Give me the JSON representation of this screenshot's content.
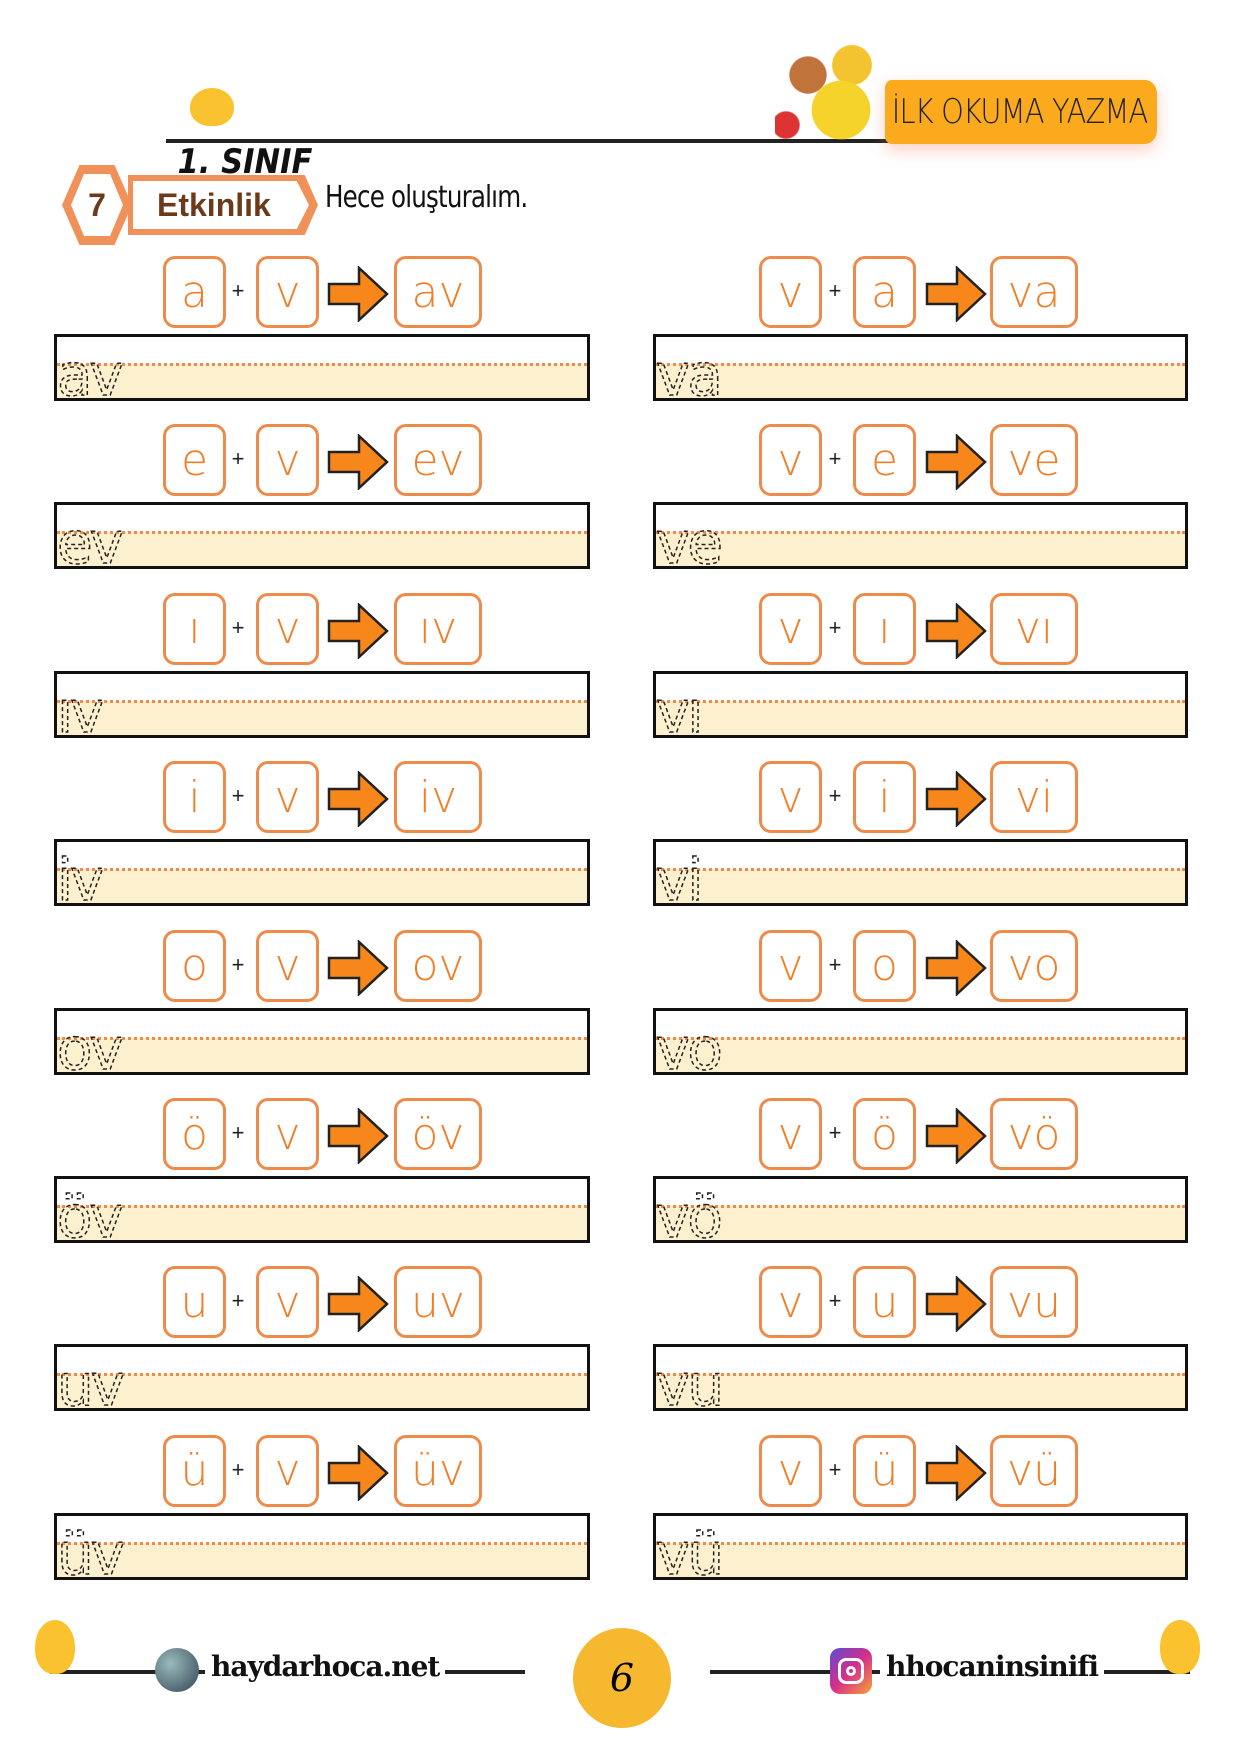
{
  "header": {
    "grade": "1. SINIF",
    "banner": "İLK OKUMA YAZMA",
    "activity_number": "7",
    "activity_label": "Etkinlik",
    "instruction": "Hece oluşturalım."
  },
  "colors": {
    "accent": "#f07f2a",
    "banner": "#fba91d",
    "strip": "#fdf0cf",
    "arrow": "#f7861b"
  },
  "left_rows": [
    {
      "a": "a",
      "b": "v",
      "result": "av",
      "trace": "av"
    },
    {
      "a": "e",
      "b": "v",
      "result": "ev",
      "trace": "ev"
    },
    {
      "a": "ı",
      "b": "v",
      "result": "ıv",
      "trace": "ıv"
    },
    {
      "a": "i",
      "b": "v",
      "result": "iv",
      "trace": "iv"
    },
    {
      "a": "o",
      "b": "v",
      "result": "ov",
      "trace": "ov"
    },
    {
      "a": "ö",
      "b": "v",
      "result": "öv",
      "trace": "öv"
    },
    {
      "a": "u",
      "b": "v",
      "result": "uv",
      "trace": "uv"
    },
    {
      "a": "ü",
      "b": "v",
      "result": "üv",
      "trace": "üv"
    }
  ],
  "right_rows": [
    {
      "a": "v",
      "b": "a",
      "result": "va",
      "trace": "va"
    },
    {
      "a": "v",
      "b": "e",
      "result": "ve",
      "trace": "ve"
    },
    {
      "a": "v",
      "b": "ı",
      "result": "vı",
      "trace": "vı"
    },
    {
      "a": "v",
      "b": "i",
      "result": "vi",
      "trace": "vi"
    },
    {
      "a": "v",
      "b": "o",
      "result": "vo",
      "trace": "vo"
    },
    {
      "a": "v",
      "b": "ö",
      "result": "vö",
      "trace": "vö"
    },
    {
      "a": "v",
      "b": "u",
      "result": "vu",
      "trace": "vu"
    },
    {
      "a": "v",
      "b": "ü",
      "result": "vü",
      "trace": "vü"
    }
  ],
  "plus": "+",
  "footer": {
    "website": "haydarhoca.net",
    "page_number": "6",
    "instagram": "hhocaninsinifi"
  }
}
